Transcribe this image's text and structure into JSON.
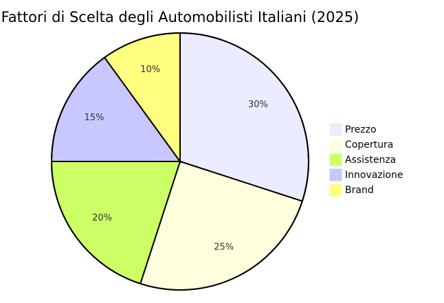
{
  "chart_data": {
    "type": "pie",
    "title": "Fattori di Scelta degli Automobilisti Italiani (2025)",
    "categories": [
      "Prezzo",
      "Copertura",
      "Assistenza",
      "Innovazione",
      "Brand"
    ],
    "values": [
      30,
      25,
      20,
      15,
      10
    ],
    "value_labels": [
      "30%",
      "25%",
      "20%",
      "15%",
      "10%"
    ],
    "colors": [
      "#ececff",
      "#ffffde",
      "#ccff66",
      "#c8c8ff",
      "#ffff80"
    ],
    "legend": "right"
  }
}
